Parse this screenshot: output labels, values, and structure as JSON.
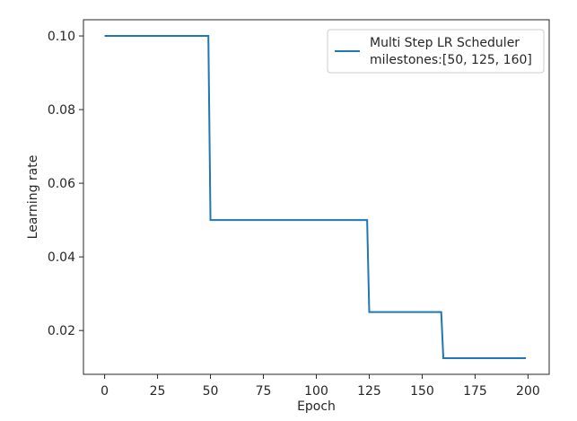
{
  "chart_data": {
    "type": "line",
    "title": "",
    "xlabel": "Epoch",
    "ylabel": "Learning rate",
    "xlim": [
      -10,
      210
    ],
    "ylim": [
      0.0081,
      0.1044
    ],
    "x_ticks": [
      0,
      25,
      50,
      75,
      100,
      125,
      150,
      175,
      200
    ],
    "y_ticks": [
      0.02,
      0.04,
      0.06,
      0.08,
      0.1
    ],
    "x_tick_labels": [
      "0",
      "25",
      "50",
      "75",
      "100",
      "125",
      "150",
      "175",
      "200"
    ],
    "y_tick_labels": [
      "0.02",
      "0.04",
      "0.06",
      "0.08",
      "0.10"
    ],
    "grid": false,
    "legend_position": "top-right",
    "series": [
      {
        "name": "Multi Step LR Scheduler\nmilestones:[50, 125, 160]",
        "legend_lines": [
          "Multi Step LR Scheduler",
          "milestones:[50, 125, 160]"
        ],
        "color": "#1f77b4",
        "x": [
          0,
          49,
          50,
          124,
          125,
          159,
          160,
          199
        ],
        "y": [
          0.1,
          0.1,
          0.05,
          0.05,
          0.025,
          0.025,
          0.0125,
          0.0125
        ]
      }
    ]
  }
}
